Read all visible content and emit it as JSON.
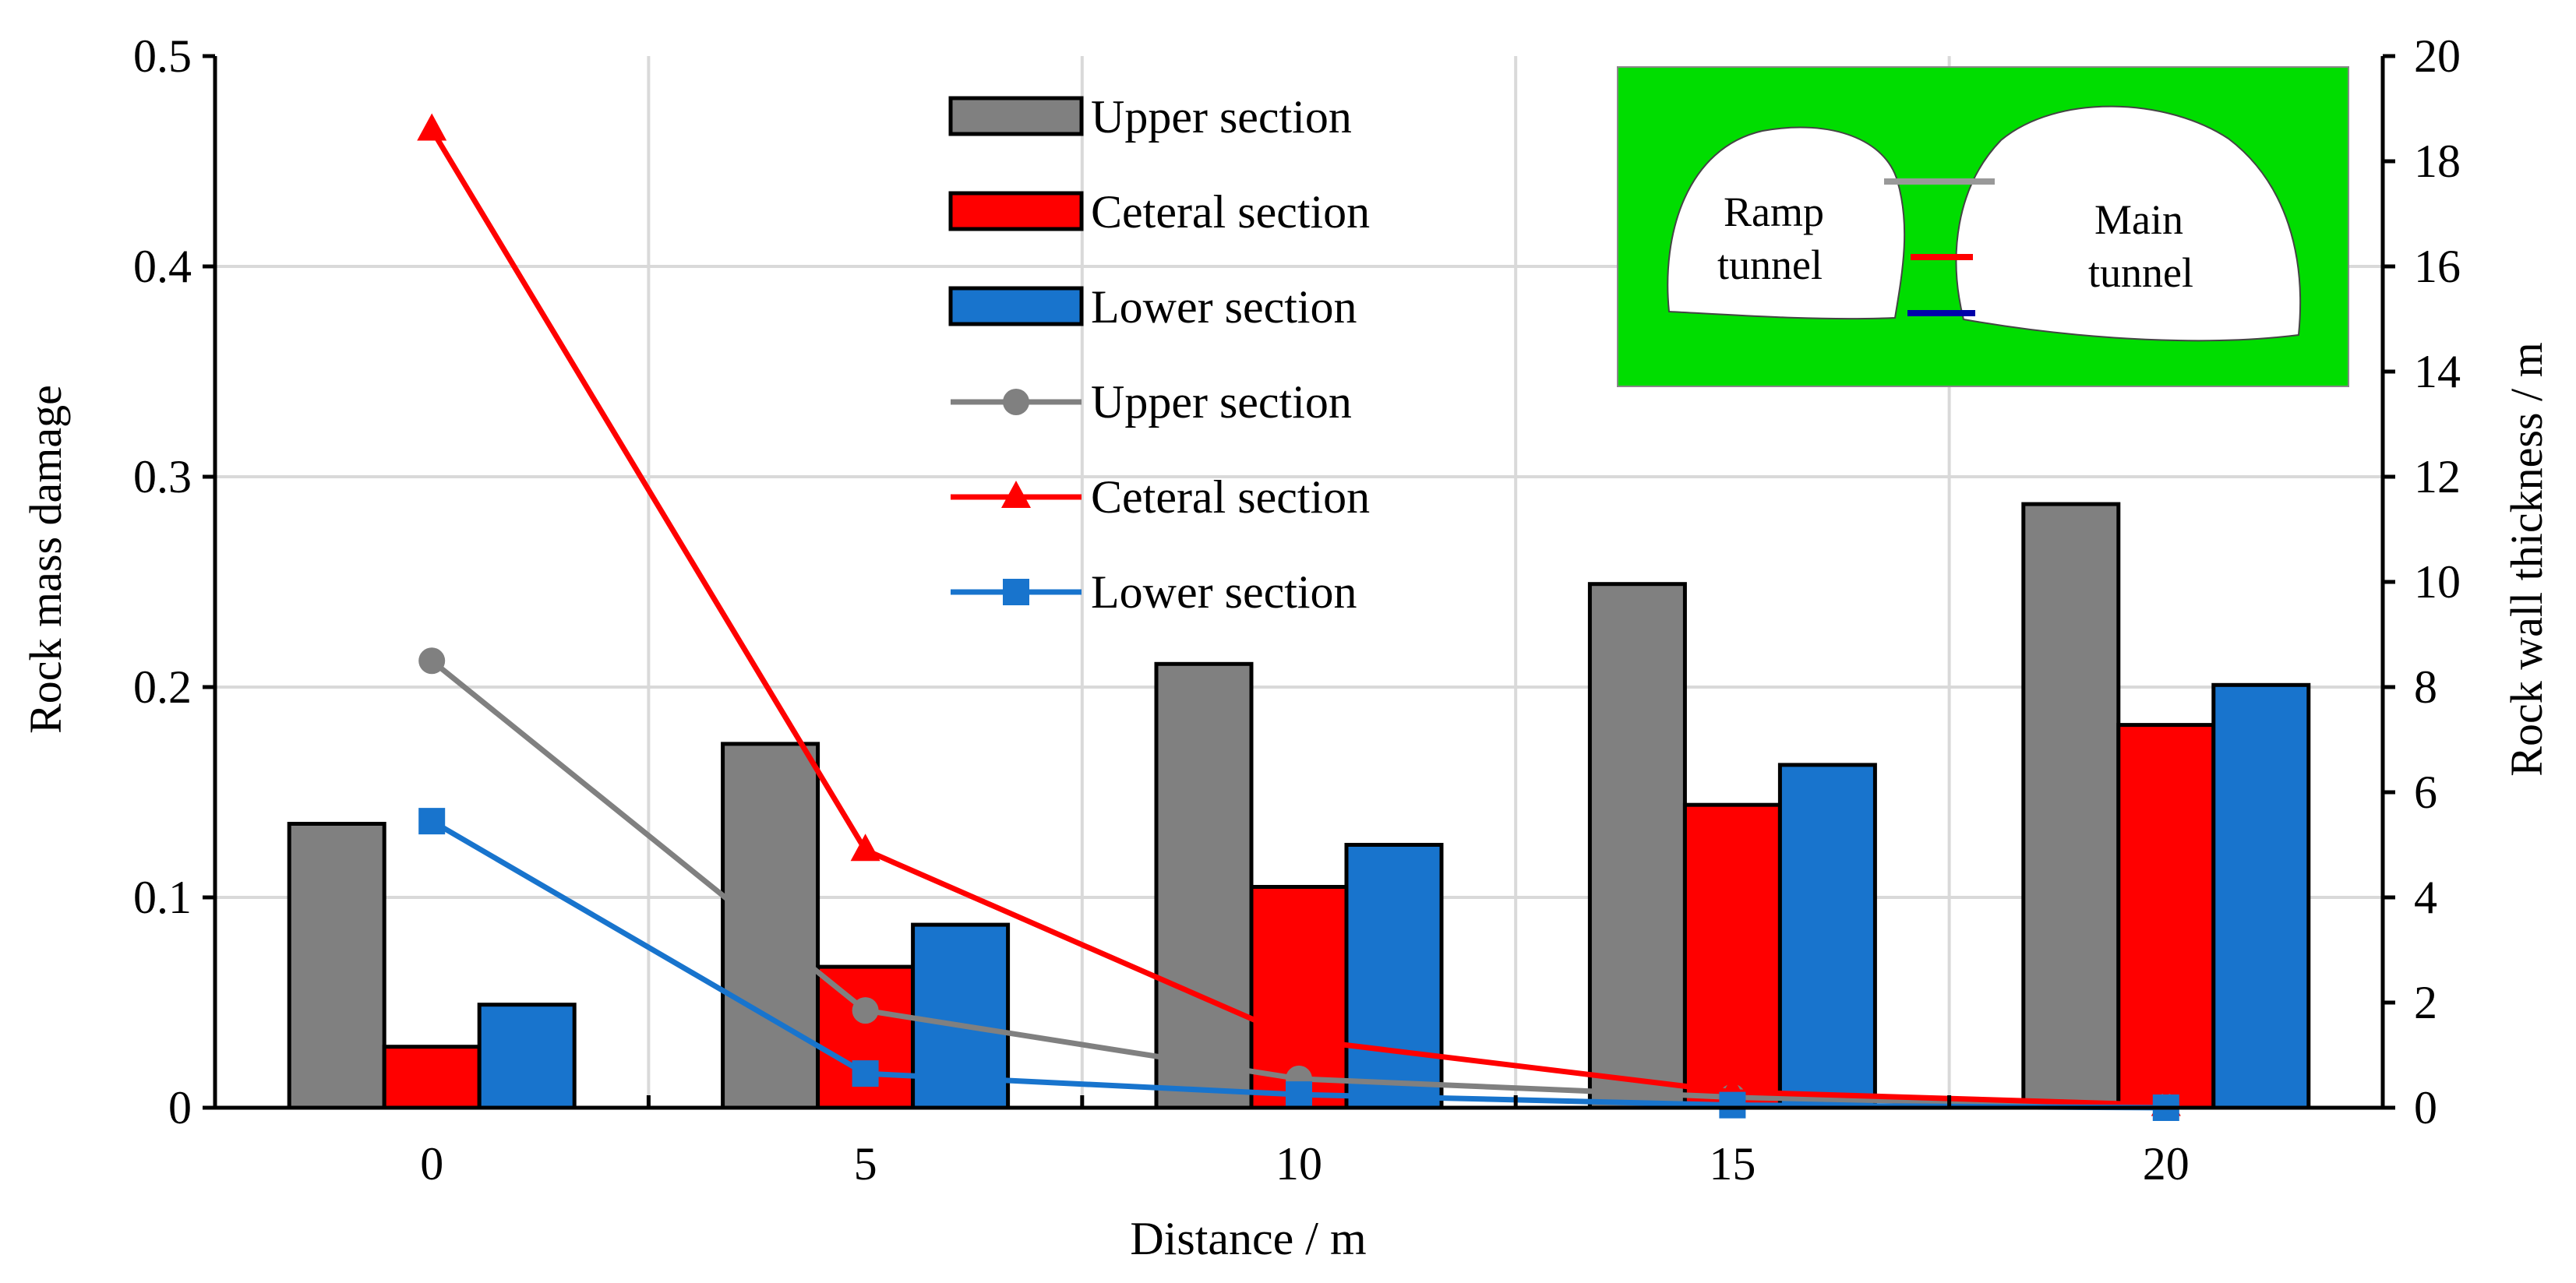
{
  "chart_data": {
    "type": "bar+line",
    "x": [
      0,
      5,
      10,
      15,
      20
    ],
    "xlabel": "Distance / m",
    "ylabel_left": "Rock mass damage",
    "ylabel_right": "Rock wall thickness / m",
    "ylim_left": [
      0,
      0.5
    ],
    "ylim_right": [
      0,
      20
    ],
    "yticks_left": [
      "0",
      "0.1",
      "0.2",
      "0.3",
      "0.4",
      "0.5"
    ],
    "yticks_right": [
      "0",
      "2",
      "4",
      "6",
      "8",
      "10",
      "12",
      "14",
      "16",
      "18",
      "20"
    ],
    "xticks": [
      "0",
      "5",
      "10",
      "15",
      "20"
    ],
    "grid": true,
    "bar_series": [
      {
        "name": "Upper section",
        "color": "#808080",
        "axis": "left",
        "values": [
          0.135,
          0.173,
          0.211,
          0.249,
          0.287
        ]
      },
      {
        "name": "Ceteral section",
        "color": "#ff0000",
        "axis": "left",
        "values": [
          0.029,
          0.067,
          0.105,
          0.144,
          0.182
        ]
      },
      {
        "name": "Lower section",
        "color": "#1874cd",
        "axis": "left",
        "values": [
          0.049,
          0.087,
          0.125,
          0.163,
          0.201
        ]
      }
    ],
    "line_series": [
      {
        "name": "Upper section",
        "color": "#808080",
        "marker": "circle",
        "axis": "right",
        "values": [
          8.5,
          1.85,
          0.55,
          0.2,
          0.02
        ]
      },
      {
        "name": "Ceteral section",
        "color": "#ff0000",
        "marker": "triangle",
        "axis": "right",
        "values": [
          18.6,
          4.9,
          1.3,
          0.3,
          0.05
        ]
      },
      {
        "name": "Lower section",
        "color": "#1874cd",
        "marker": "square",
        "axis": "right",
        "values": [
          5.45,
          0.65,
          0.25,
          0.05,
          0.0
        ]
      }
    ],
    "inset": {
      "background": "#00dd00",
      "labels": {
        "left": [
          "Ramp",
          "tunnel"
        ],
        "right": [
          "Main",
          "tunnel"
        ]
      }
    }
  }
}
